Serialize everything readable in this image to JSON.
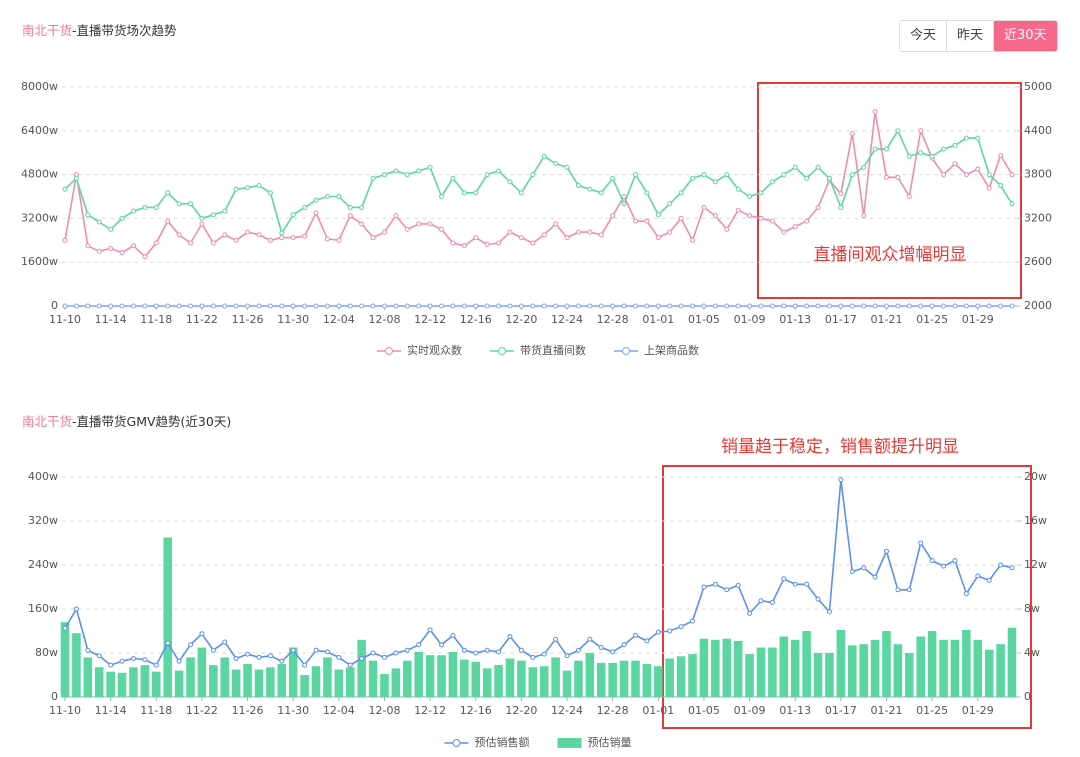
{
  "controls": {
    "buttons": [
      "今天",
      "昨天",
      "近30天"
    ],
    "selected": 2
  },
  "chart_data": [
    {
      "type": "line",
      "title_brand": "南北干货",
      "title": "-直播带货场次趋势",
      "annotation": "直播间观众增幅明显",
      "categories": [
        "11-10",
        null,
        null,
        null,
        "11-14",
        null,
        null,
        null,
        "11-18",
        null,
        null,
        null,
        "11-22",
        null,
        null,
        null,
        "11-26",
        null,
        null,
        null,
        "11-30",
        null,
        null,
        null,
        "12-04",
        null,
        null,
        null,
        "12-08",
        null,
        null,
        null,
        "12-12",
        null,
        null,
        null,
        "12-16",
        null,
        null,
        null,
        "12-20",
        null,
        null,
        null,
        "12-24",
        null,
        null,
        null,
        "12-28",
        null,
        null,
        null,
        "01-01",
        null,
        null,
        null,
        "01-05",
        null,
        null,
        null,
        "01-09",
        null,
        null,
        null,
        "01-13",
        null,
        null,
        null,
        "01-17",
        null,
        null,
        null,
        "01-21",
        null,
        null,
        null,
        "01-25",
        null,
        null,
        null,
        "01-29",
        null,
        null,
        null
      ],
      "ylim": [
        0,
        8000
      ],
      "yticks": [
        0,
        {
          "value": 1600,
          "label": "1600w"
        },
        {
          "value": 3200,
          "label": "3200w"
        },
        {
          "value": 4800,
          "label": "4800w"
        },
        {
          "value": 6400,
          "label": "6400w"
        },
        {
          "value": 8000,
          "label": "8000w"
        }
      ],
      "y2lim": [
        2000,
        5000
      ],
      "y2ticks": [
        2000,
        2600,
        3200,
        3800,
        4400,
        5000
      ],
      "grid": true,
      "series": [
        {
          "name": "实时观众数",
          "color": "#f08cb0",
          "type": "line",
          "values": [
            2400,
            4800,
            2200,
            2000,
            2100,
            1950,
            2200,
            1800,
            2300,
            3100,
            2600,
            2300,
            3000,
            2300,
            2600,
            2400,
            2700,
            2600,
            2400,
            2500,
            2500,
            2550,
            3400,
            2450,
            2400,
            3300,
            3000,
            2500,
            2700,
            3300,
            2800,
            3000,
            3000,
            2800,
            2300,
            2200,
            2500,
            2250,
            2300,
            2700,
            2500,
            2300,
            2600,
            3000,
            2500,
            2700,
            2700,
            2600,
            3300,
            4000,
            3100,
            3100,
            2500,
            2700,
            3200,
            2400,
            3600,
            3300,
            2800,
            3500,
            3300,
            3200,
            3100,
            2700,
            2900,
            3100,
            3600,
            4600,
            4100,
            6300,
            3300,
            7100,
            4700,
            4700,
            4000,
            6400,
            5400,
            4800,
            5200,
            4800,
            5000,
            4300,
            5500,
            4800
          ]
        },
        {
          "name": "带货直播间数",
          "color": "#5dd6a5",
          "type": "line",
          "axis": "y2",
          "values": [
            3600,
            3750,
            3250,
            3150,
            3050,
            3200,
            3300,
            3350,
            3350,
            3550,
            3400,
            3400,
            3200,
            3250,
            3300,
            3600,
            3620,
            3650,
            3550,
            3000,
            3250,
            3350,
            3450,
            3500,
            3500,
            3350,
            3350,
            3750,
            3800,
            3850,
            3800,
            3850,
            3900,
            3500,
            3750,
            3550,
            3550,
            3800,
            3850,
            3700,
            3550,
            3800,
            4050,
            3950,
            3900,
            3650,
            3600,
            3550,
            3750,
            3400,
            3800,
            3550,
            3250,
            3400,
            3550,
            3750,
            3800,
            3700,
            3800,
            3600,
            3500,
            3550,
            3700,
            3800,
            3900,
            3750,
            3900,
            3750,
            3350,
            3800,
            3900,
            4150,
            4150,
            4400,
            4050,
            4100,
            4050,
            4150,
            4200,
            4300,
            4300,
            3800,
            3650,
            3400
          ]
        },
        {
          "name": "上架商品数",
          "color": "#7ea6f0",
          "type": "line",
          "values": [
            0,
            0,
            0,
            0,
            0,
            0,
            0,
            0,
            0,
            0,
            0,
            0,
            0,
            0,
            0,
            0,
            0,
            0,
            0,
            0,
            0,
            0,
            0,
            0,
            0,
            0,
            0,
            0,
            0,
            0,
            0,
            0,
            0,
            0,
            0,
            0,
            0,
            0,
            0,
            0,
            0,
            0,
            0,
            0,
            0,
            0,
            0,
            0,
            0,
            0,
            0,
            0,
            0,
            0,
            0,
            0,
            0,
            0,
            0,
            0,
            0,
            0,
            0,
            0,
            0,
            0,
            0,
            0,
            0,
            0,
            0,
            0,
            0,
            0,
            0,
            0,
            0,
            0,
            0,
            0,
            0,
            0,
            0,
            0
          ]
        }
      ]
    },
    {
      "type": "bar",
      "title_brand": "南北干货",
      "title": "-直播带货GMV趋势(近30天)",
      "annotation": "销量趋于稳定，销售额提升明显",
      "categories": [
        "11-10",
        null,
        null,
        null,
        "11-14",
        null,
        null,
        null,
        "11-18",
        null,
        null,
        null,
        "11-22",
        null,
        null,
        null,
        "11-26",
        null,
        null,
        null,
        "11-30",
        null,
        null,
        null,
        "12-04",
        null,
        null,
        null,
        "12-08",
        null,
        null,
        null,
        "12-12",
        null,
        null,
        null,
        "12-16",
        null,
        null,
        null,
        "12-20",
        null,
        null,
        null,
        "12-24",
        null,
        null,
        null,
        "12-28",
        null,
        null,
        null,
        "01-01",
        null,
        null,
        null,
        "01-05",
        null,
        null,
        null,
        "01-09",
        null,
        null,
        null,
        "01-13",
        null,
        null,
        null,
        "01-17",
        null,
        null,
        null,
        "01-21",
        null,
        null,
        null,
        "01-25",
        null,
        null,
        null,
        "01-29",
        null,
        null,
        null
      ],
      "ylim": [
        0,
        400
      ],
      "yticks": [
        0,
        {
          "value": 80,
          "label": "80w"
        },
        {
          "value": 160,
          "label": "160w"
        },
        {
          "value": 240,
          "label": "240w"
        },
        {
          "value": 320,
          "label": "320w"
        },
        {
          "value": 400,
          "label": "400w"
        }
      ],
      "y2lim": [
        0,
        20
      ],
      "y2ticks": [
        0,
        {
          "value": 4,
          "label": "4w"
        },
        {
          "value": 8,
          "label": "8w"
        },
        {
          "value": 12,
          "label": "12w"
        },
        {
          "value": 16,
          "label": "16w"
        },
        {
          "value": 20,
          "label": "20w"
        }
      ],
      "grid": true,
      "series": [
        {
          "name": "预估销售额",
          "color": "#5b8ff0",
          "type": "line",
          "values": [
            125,
            160,
            85,
            75,
            58,
            65,
            70,
            68,
            58,
            98,
            65,
            95,
            115,
            85,
            100,
            70,
            78,
            72,
            75,
            65,
            85,
            58,
            85,
            82,
            72,
            58,
            70,
            80,
            72,
            80,
            85,
            95,
            122,
            95,
            112,
            85,
            80,
            85,
            82,
            110,
            85,
            72,
            78,
            105,
            75,
            85,
            105,
            90,
            82,
            95,
            112,
            102,
            118,
            120,
            128,
            138,
            200,
            205,
            195,
            203,
            152,
            175,
            172,
            215,
            205,
            205,
            178,
            155,
            395,
            228,
            235,
            218,
            265,
            195,
            195,
            280,
            248,
            238,
            248,
            188,
            220,
            212,
            240,
            235
          ]
        },
        {
          "name": "预估销量",
          "color": "#5cd6a0",
          "type": "bar",
          "axis": "y2",
          "values": [
            6.8,
            5.8,
            3.6,
            2.7,
            2.3,
            2.2,
            2.7,
            2.9,
            2.3,
            14.5,
            2.4,
            3.6,
            4.5,
            2.9,
            3.6,
            2.5,
            3.0,
            2.5,
            2.7,
            3.0,
            4.5,
            2.0,
            2.8,
            3.6,
            2.5,
            2.7,
            5.2,
            3.3,
            2.1,
            2.6,
            3.3,
            4.1,
            3.8,
            3.8,
            4.1,
            3.4,
            3.2,
            2.6,
            2.9,
            3.5,
            3.3,
            2.7,
            2.8,
            3.6,
            2.4,
            3.3,
            4.0,
            3.1,
            3.1,
            3.3,
            3.3,
            3.0,
            2.8,
            3.5,
            3.7,
            3.9,
            5.3,
            5.2,
            5.3,
            5.1,
            3.9,
            4.5,
            4.5,
            5.5,
            5.2,
            6.0,
            4.0,
            4.0,
            6.1,
            4.7,
            4.8,
            5.2,
            6.0,
            4.8,
            4.0,
            5.5,
            6.0,
            5.2,
            5.2,
            6.1,
            5.2,
            4.3,
            4.8,
            6.3
          ]
        }
      ]
    }
  ]
}
